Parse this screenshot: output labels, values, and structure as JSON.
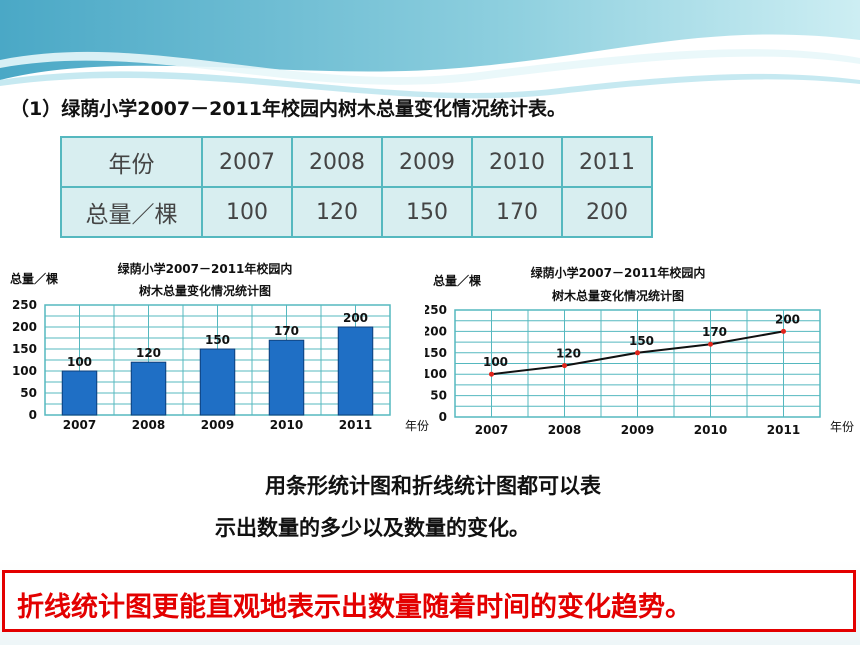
{
  "title": "（1）绿荫小学2007－2011年校园内树木总量变化情况统计表。",
  "table": {
    "row_headers": [
      "年份",
      "总量／棵"
    ],
    "years": [
      "2007",
      "2008",
      "2009",
      "2010",
      "2011"
    ],
    "totals": [
      "100",
      "120",
      "150",
      "170",
      "200"
    ]
  },
  "chart_data": [
    {
      "type": "bar",
      "title_line1": "绿荫小学2007－2011年校园内",
      "title_line2": "树木总量变化情况统计图",
      "ylabel": "总量／棵",
      "xlabel": "年份",
      "categories": [
        "2007",
        "2008",
        "2009",
        "2010",
        "2011"
      ],
      "values": [
        100,
        120,
        150,
        170,
        200
      ],
      "yticks": [
        "0",
        "50",
        "100",
        "150",
        "200",
        "250"
      ],
      "ylim": [
        0,
        250
      ],
      "grid": true,
      "bar_color": "#1f6fc5"
    },
    {
      "type": "line",
      "title_line1": "绿荫小学2007－2011年校园内",
      "title_line2": "树木总量变化情况统计图",
      "ylabel": "总量／棵",
      "xlabel": "年份",
      "categories": [
        "2007",
        "2008",
        "2009",
        "2010",
        "2011"
      ],
      "values": [
        100,
        120,
        150,
        170,
        200
      ],
      "yticks": [
        "0",
        "50",
        "100",
        "150",
        "200",
        "250"
      ],
      "ylim": [
        0,
        250
      ],
      "grid": true,
      "point_color": "#e0241b"
    }
  ],
  "note_line1": "用条形统计图和折线统计图都可以表",
  "note_line2": "示出数量的多少以及数量的变化。",
  "conclusion": "折线统计图更能直观地表示出数量随着时间的变化趋势。",
  "colors": {
    "grid_line": "#55b8bf",
    "conclusion_red": "#e30000"
  }
}
